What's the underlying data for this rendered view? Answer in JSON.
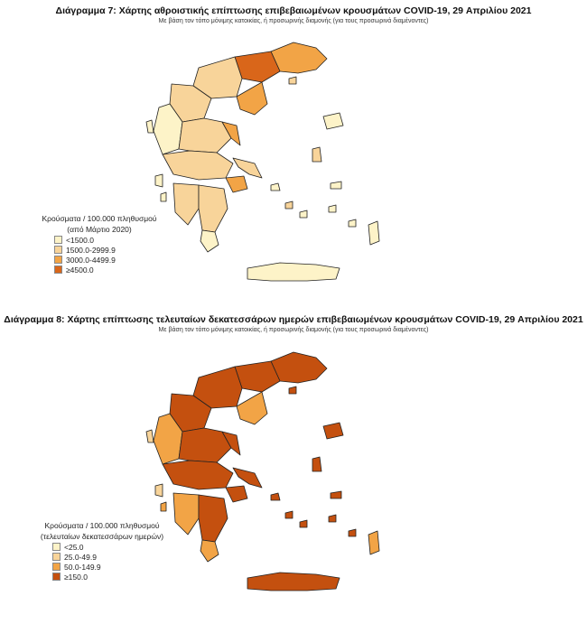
{
  "map1": {
    "title": "Διάγραμμα 7: Χάρτης αθροιστικής επίπτωσης επιβεβαιωμένων κρουσμάτων COVID-19, 29 Απριλίου 2021",
    "subtitle": "Με βάση τον τόπο μόνιμης κατοικίας, ή προσωρινής διαμονής (για τους προσωρινά διαμένοντες)",
    "legend_title_1": "Κρούσματα / 100.000 πληθυσμού",
    "legend_title_2": "(από Μάρτιο 2020)",
    "legend": [
      {
        "label": "<1500.0",
        "color": "#fdf3c8"
      },
      {
        "label": "1500.0-2999.9",
        "color": "#f8d49a"
      },
      {
        "label": "3000.0-4499.9",
        "color": "#f2a446"
      },
      {
        "label": "≥4500.0",
        "color": "#d9661a"
      }
    ]
  },
  "map2": {
    "title": "Διάγραμμα 8: Χάρτης επίπτωσης τελευταίων δεκατεσσάρων ημερών επιβεβαιωμένων κρουσμάτων COVID-19, 29 Απριλίου 2021",
    "subtitle": "Με βάση τον τόπο μόνιμης κατοικίας, ή προσωρινής διαμονής (για τους προσωρινά διαμένοντες)",
    "legend_title_1": "Κρούσματα / 100.000 πληθυσμού",
    "legend_title_2": "(τελευταίων δεκατεσσάρων ημερών)",
    "legend": [
      {
        "label": "<25.0",
        "color": "#fdf3c8"
      },
      {
        "label": "25.0-49.9",
        "color": "#f8d49a"
      },
      {
        "label": "50.0-149.9",
        "color": "#f2a446"
      },
      {
        "label": "≥150.0",
        "color": "#c4500f"
      }
    ]
  }
}
